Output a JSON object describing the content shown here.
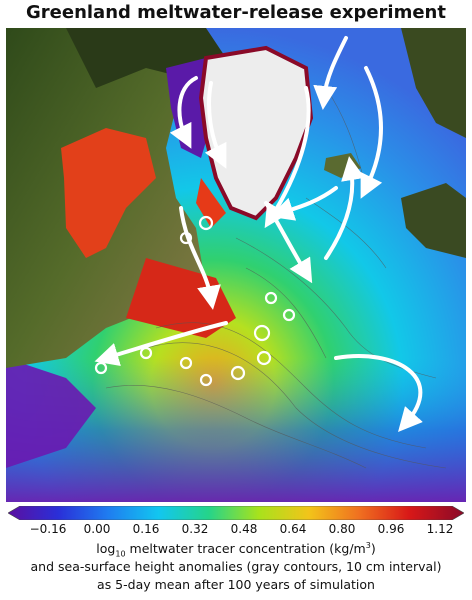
{
  "title": "Greenland meltwater-release experiment",
  "colorbar": {
    "ticks": [
      "−0.16",
      "0.00",
      "0.16",
      "0.32",
      "0.48",
      "0.64",
      "0.80",
      "0.96",
      "1.12"
    ],
    "colors": [
      "#5b0fa0",
      "#2a2fd8",
      "#1f7df0",
      "#12c6f0",
      "#25d48a",
      "#a8e21c",
      "#f2c41a",
      "#f07020",
      "#d81818",
      "#8a0a28"
    ]
  },
  "caption": {
    "line1_prefix": "log",
    "line1_sub": "10",
    "line1_mid": " meltwater tracer concentration (kg/m",
    "line1_sup": "3",
    "line1_end": ")",
    "line2": "and sea-surface height anomalies (gray contours, 10 cm interval)",
    "line3": "as 5-day mean after 100 years of simulation"
  }
}
